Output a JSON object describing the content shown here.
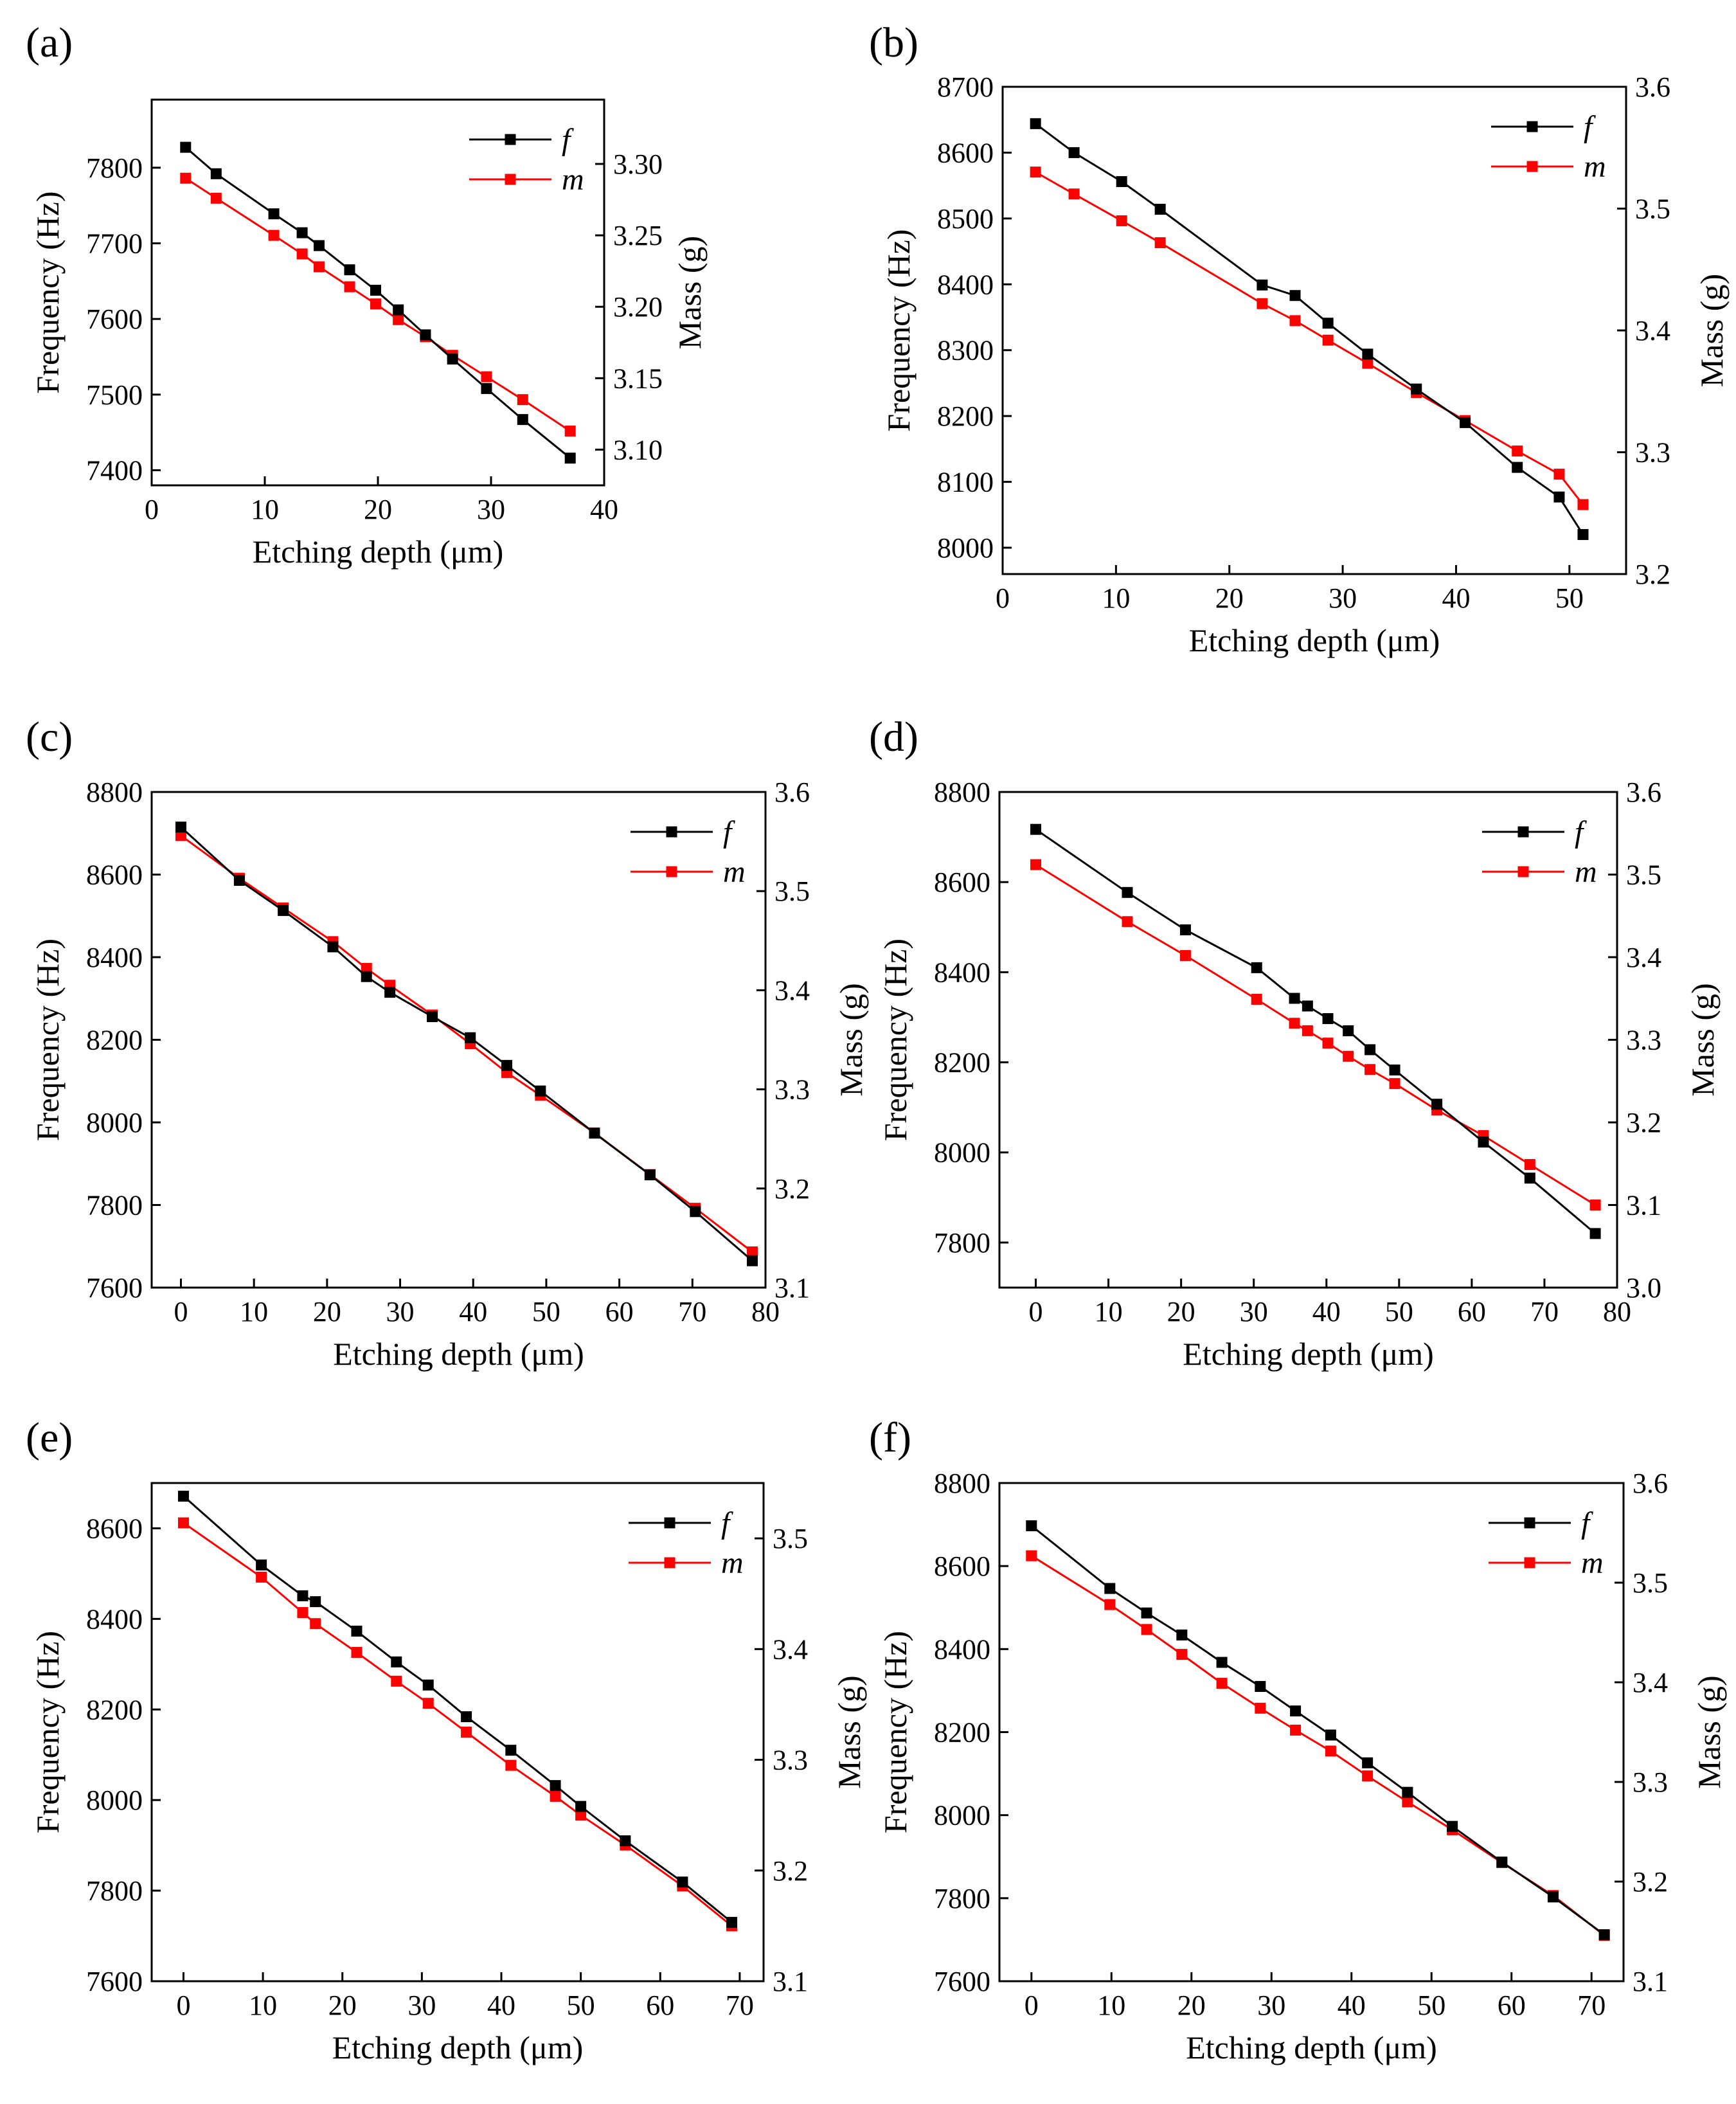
{
  "figure": {
    "colors": {
      "f": "#000000",
      "m": "#ff0000"
    }
  },
  "chart_data": [
    {
      "type": "line",
      "label": "(a)",
      "xlabel": "Etching depth (μm)",
      "ylabel_left": "Frequency (Hz)",
      "ylabel_right": "Mass (g)",
      "xlim": [
        0,
        40
      ],
      "xticks": [
        0,
        10,
        20,
        30,
        40
      ],
      "ylim_left": [
        7380,
        7890
      ],
      "yticks_left": [
        7400,
        7500,
        7600,
        7700,
        7800
      ],
      "ylim_right": [
        3.075,
        3.345
      ],
      "yticks_right": [
        3.1,
        3.15,
        3.2,
        3.25,
        3.3
      ],
      "yticks_right_decimals": 2,
      "legend": [
        "f",
        "m"
      ],
      "series": [
        {
          "name": "f",
          "axis": "left",
          "x": [
            3.0,
            5.7,
            10.8,
            13.3,
            14.8,
            17.5,
            19.8,
            21.8,
            24.2,
            26.6,
            29.6,
            32.8,
            37.0
          ],
          "y": [
            7827,
            7792,
            7739,
            7714,
            7697,
            7665,
            7638,
            7612,
            7579,
            7547,
            7508,
            7467,
            7416
          ]
        },
        {
          "name": "m",
          "axis": "right",
          "x": [
            3.0,
            5.7,
            10.8,
            13.3,
            14.8,
            17.5,
            19.8,
            21.8,
            24.2,
            26.6,
            29.6,
            32.8,
            37.0
          ],
          "y": [
            3.29,
            3.276,
            3.25,
            3.237,
            3.228,
            3.214,
            3.202,
            3.191,
            3.179,
            3.166,
            3.151,
            3.135,
            3.113
          ]
        }
      ]
    },
    {
      "type": "line",
      "label": "(b)",
      "xlabel": "Etching depth (μm)",
      "ylabel_left": "Frequency (Hz)",
      "ylabel_right": "Mass (g)",
      "xlim": [
        0,
        55
      ],
      "xticks": [
        0,
        10,
        20,
        30,
        40,
        50
      ],
      "ylim_left": [
        7960,
        8700
      ],
      "yticks_left": [
        8000,
        8100,
        8200,
        8300,
        8400,
        8500,
        8600,
        8700
      ],
      "ylim_right": [
        3.2,
        3.6
      ],
      "yticks_right": [
        3.2,
        3.3,
        3.4,
        3.5,
        3.6
      ],
      "yticks_right_decimals": 1,
      "legend": [
        "f",
        "m"
      ],
      "series": [
        {
          "name": "f",
          "axis": "left",
          "x": [
            2.9,
            6.3,
            10.5,
            13.9,
            22.9,
            25.8,
            28.7,
            32.2,
            36.5,
            40.8,
            45.4,
            49.1,
            51.2
          ],
          "y": [
            8644,
            8600,
            8556,
            8514,
            8399,
            8383,
            8341,
            8294,
            8241,
            8190,
            8122,
            8077,
            8020
          ]
        },
        {
          "name": "m",
          "axis": "right",
          "x": [
            2.9,
            6.3,
            10.5,
            13.9,
            22.9,
            25.8,
            28.7,
            32.2,
            36.5,
            40.8,
            45.4,
            49.1,
            51.2
          ],
          "y": [
            3.53,
            3.512,
            3.49,
            3.472,
            3.422,
            3.408,
            3.392,
            3.373,
            3.349,
            3.326,
            3.301,
            3.282,
            3.257
          ]
        }
      ]
    },
    {
      "type": "line",
      "label": "(c)",
      "xlabel": "Etching depth (μm)",
      "ylabel_left": "Frequency (Hz)",
      "ylabel_right": "Mass (g)",
      "xlim": [
        -4,
        80
      ],
      "xticks": [
        0,
        10,
        20,
        30,
        40,
        50,
        60,
        70,
        80
      ],
      "ylim_left": [
        7600,
        8800
      ],
      "yticks_left": [
        7600,
        7800,
        8000,
        8200,
        8400,
        8600,
        8800
      ],
      "ylim_right": [
        3.1,
        3.6
      ],
      "yticks_right": [
        3.1,
        3.2,
        3.3,
        3.4,
        3.5,
        3.6
      ],
      "yticks_right_decimals": 1,
      "legend": [
        "f",
        "m"
      ],
      "series": [
        {
          "name": "f",
          "axis": "left",
          "x": [
            0,
            8,
            14,
            20.8,
            25.4,
            28.6,
            34.4,
            39.6,
            44.6,
            49.2,
            56.6,
            64.2,
            70.4,
            78.2
          ],
          "y": [
            8715,
            8586,
            8513,
            8425,
            8353,
            8315,
            8256,
            8205,
            8138,
            8076,
            7974,
            7873,
            7784,
            7665
          ]
        },
        {
          "name": "m",
          "axis": "right",
          "x": [
            0,
            8,
            14,
            20.8,
            25.4,
            28.6,
            34.4,
            39.6,
            44.6,
            49.2,
            56.6,
            64.2,
            70.4,
            78.2
          ],
          "y": [
            3.556,
            3.513,
            3.483,
            3.449,
            3.422,
            3.405,
            3.375,
            3.346,
            3.317,
            3.294,
            3.256,
            3.214,
            3.18,
            3.136
          ]
        }
      ]
    },
    {
      "type": "line",
      "label": "(d)",
      "xlabel": "Etching depth (μm)",
      "ylabel_left": "Frequency (Hz)",
      "ylabel_right": "Mass (g)",
      "xlim": [
        -5,
        80
      ],
      "xticks": [
        0,
        10,
        20,
        30,
        40,
        50,
        60,
        70,
        80
      ],
      "ylim_left": [
        7700,
        8800
      ],
      "yticks_left": [
        7800,
        8000,
        8200,
        8400,
        8600,
        8800
      ],
      "ylim_right": [
        3.0,
        3.6
      ],
      "yticks_right": [
        3.0,
        3.1,
        3.2,
        3.3,
        3.4,
        3.5,
        3.6
      ],
      "yticks_right_decimals": 1,
      "legend": [
        "f",
        "m"
      ],
      "series": [
        {
          "name": "f",
          "axis": "left",
          "x": [
            0,
            12.6,
            20.6,
            30.4,
            35.6,
            37.4,
            40.2,
            43,
            46,
            49.4,
            55.2,
            61.6,
            68,
            77
          ],
          "y": [
            8717,
            8577,
            8494,
            8410,
            8342,
            8325,
            8297,
            8270,
            8228,
            8183,
            8107,
            8023,
            7943,
            7820
          ]
        },
        {
          "name": "m",
          "axis": "right",
          "x": [
            0,
            12.6,
            20.6,
            30.4,
            35.6,
            37.4,
            40.2,
            43,
            46,
            49.4,
            55.2,
            61.6,
            68,
            77
          ],
          "y": [
            3.512,
            3.443,
            3.402,
            3.349,
            3.32,
            3.311,
            3.296,
            3.28,
            3.264,
            3.247,
            3.215,
            3.184,
            3.149,
            3.1
          ]
        }
      ]
    },
    {
      "type": "line",
      "label": "(e)",
      "xlabel": "Etching depth (μm)",
      "ylabel_left": "Frequency (Hz)",
      "ylabel_right": "Mass (g)",
      "xlim": [
        -4,
        73
      ],
      "xticks": [
        0,
        10,
        20,
        30,
        40,
        50,
        60,
        70
      ],
      "ylim_left": [
        7600,
        8700
      ],
      "yticks_left": [
        7600,
        7800,
        8000,
        8200,
        8400,
        8600
      ],
      "ylim_right": [
        3.1,
        3.55
      ],
      "yticks_right": [
        3.1,
        3.2,
        3.3,
        3.4,
        3.5
      ],
      "yticks_right_decimals": 1,
      "legend": [
        "f",
        "m"
      ],
      "series": [
        {
          "name": "f",
          "axis": "left",
          "x": [
            0,
            9.8,
            15,
            16.6,
            21.8,
            26.8,
            30.8,
            35.6,
            41.2,
            46.8,
            50,
            55.6,
            62.8,
            69
          ],
          "y": [
            8671,
            8519,
            8451,
            8438,
            8373,
            8305,
            8254,
            8184,
            8110,
            8032,
            7986,
            7910,
            7819,
            7730
          ]
        },
        {
          "name": "m",
          "axis": "right",
          "x": [
            0,
            9.8,
            15,
            16.6,
            21.8,
            26.8,
            30.8,
            35.6,
            41.2,
            46.8,
            50,
            55.6,
            62.8,
            69
          ],
          "y": [
            3.514,
            3.465,
            3.433,
            3.423,
            3.397,
            3.371,
            3.351,
            3.325,
            3.295,
            3.267,
            3.25,
            3.223,
            3.186,
            3.15
          ]
        }
      ]
    },
    {
      "type": "line",
      "label": "(f)",
      "xlabel": "Etching depth (μm)",
      "ylabel_left": "Frequency (Hz)",
      "ylabel_right": "Mass (g)",
      "xlim": [
        -4,
        74
      ],
      "xticks": [
        0,
        10,
        20,
        30,
        40,
        50,
        60,
        70
      ],
      "ylim_left": [
        7600,
        8800
      ],
      "yticks_left": [
        7600,
        7800,
        8000,
        8200,
        8400,
        8600,
        8800
      ],
      "ylim_right": [
        3.1,
        3.6
      ],
      "yticks_right": [
        3.1,
        3.2,
        3.3,
        3.4,
        3.5,
        3.6
      ],
      "yticks_right_decimals": 1,
      "legend": [
        "f",
        "m"
      ],
      "series": [
        {
          "name": "f",
          "axis": "left",
          "x": [
            0,
            9.8,
            14.4,
            18.8,
            23.8,
            28.6,
            33,
            37.4,
            42,
            47,
            52.6,
            58.8,
            65.2,
            71.6
          ],
          "y": [
            8697,
            8546,
            8487,
            8434,
            8368,
            8310,
            8251,
            8193,
            8126,
            8055,
            7973,
            7887,
            7803,
            7712
          ]
        },
        {
          "name": "m",
          "axis": "right",
          "x": [
            0,
            9.8,
            14.4,
            18.8,
            23.8,
            28.6,
            33,
            37.4,
            42,
            47,
            52.6,
            58.8,
            65.2,
            71.6
          ],
          "y": [
            3.527,
            3.478,
            3.453,
            3.428,
            3.399,
            3.374,
            3.352,
            3.331,
            3.306,
            3.28,
            3.252,
            3.219,
            3.186,
            3.146
          ]
        }
      ]
    }
  ]
}
